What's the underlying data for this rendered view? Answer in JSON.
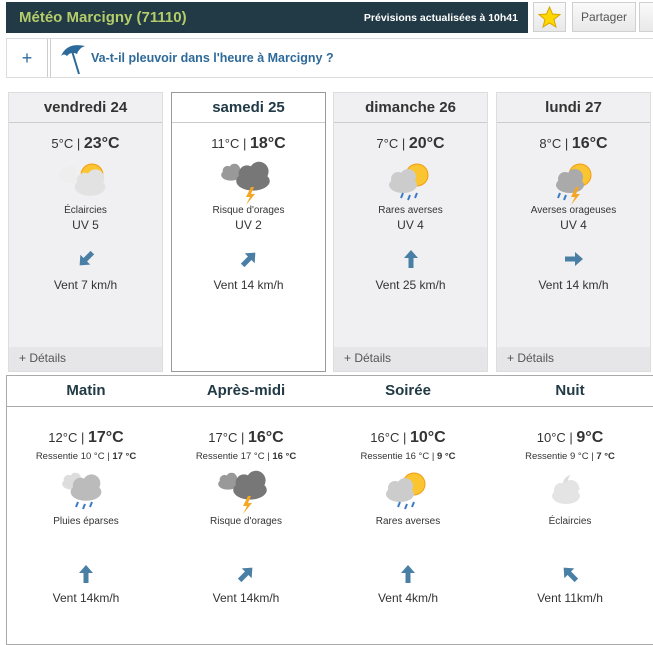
{
  "header": {
    "title": "Météo Marcigny (71110)",
    "updated": "Prévisions actualisées à 10h41",
    "share_label": "Partager"
  },
  "rain": {
    "plus": "+",
    "question": "Va-t-il pleuvoir dans l'heure à Marcigny ?"
  },
  "days": [
    {
      "name": "vendredi 24",
      "min": "5°C",
      "max": "23°C",
      "icon": "sun-behind-cloud",
      "desc": "Éclaircies",
      "uv": "UV 5",
      "wind_dir": "sw",
      "wind": "Vent 7 km/h",
      "details": "Détails",
      "selected": false
    },
    {
      "name": "samedi 25",
      "min": "11°C",
      "max": "18°C",
      "icon": "thunderstorm",
      "desc": "Risque d'orages",
      "uv": "UV 2",
      "wind_dir": "ne",
      "wind": "Vent 14 km/h",
      "selected": true
    },
    {
      "name": "dimanche 26",
      "min": "7°C",
      "max": "20°C",
      "icon": "sun-rain-showers",
      "desc": "Rares averses",
      "uv": "UV 4",
      "wind_dir": "n",
      "wind": "Vent 25 km/h",
      "details": "Détails",
      "selected": false
    },
    {
      "name": "lundi 27",
      "min": "8°C",
      "max": "16°C",
      "icon": "sun-thunder-rain",
      "desc": "Averses orageuses",
      "uv": "UV 4",
      "wind_dir": "e",
      "wind": "Vent 14 km/h",
      "details": "Détails",
      "selected": false
    }
  ],
  "periods": [
    {
      "name": "Matin",
      "min": "12°C",
      "max": "17°C",
      "feel_label": "Ressentie 10 °C |",
      "feel_max": "17 °C",
      "icon": "cloud-rain",
      "desc": "Pluies éparses",
      "wind_dir": "n",
      "wind": "Vent 14km/h"
    },
    {
      "name": "Après-midi",
      "min": "17°C",
      "max": "16°C",
      "feel_label": "Ressentie 17 °C |",
      "feel_max": "16 °C",
      "icon": "thunderstorm",
      "desc": "Risque d'orages",
      "wind_dir": "ne",
      "wind": "Vent 14km/h"
    },
    {
      "name": "Soirée",
      "min": "16°C",
      "max": "10°C",
      "feel_label": "Ressentie 16 °C |",
      "feel_max": "9 °C",
      "icon": "sun-rain-showers",
      "desc": "Rares averses",
      "wind_dir": "n",
      "wind": "Vent 4km/h"
    },
    {
      "name": "Nuit",
      "min": "10°C",
      "max": "9°C",
      "feel_label": "Ressentie 9 °C |",
      "feel_max": "7 °C",
      "icon": "moon-cloud",
      "desc": "Éclaircies",
      "wind_dir": "nw",
      "wind": "Vent 11km/h"
    }
  ],
  "colors": {
    "header_bg": "#213a45",
    "title": "#b5cc6a",
    "link": "#2d6a9a",
    "arrow": "#4a7fa5"
  }
}
